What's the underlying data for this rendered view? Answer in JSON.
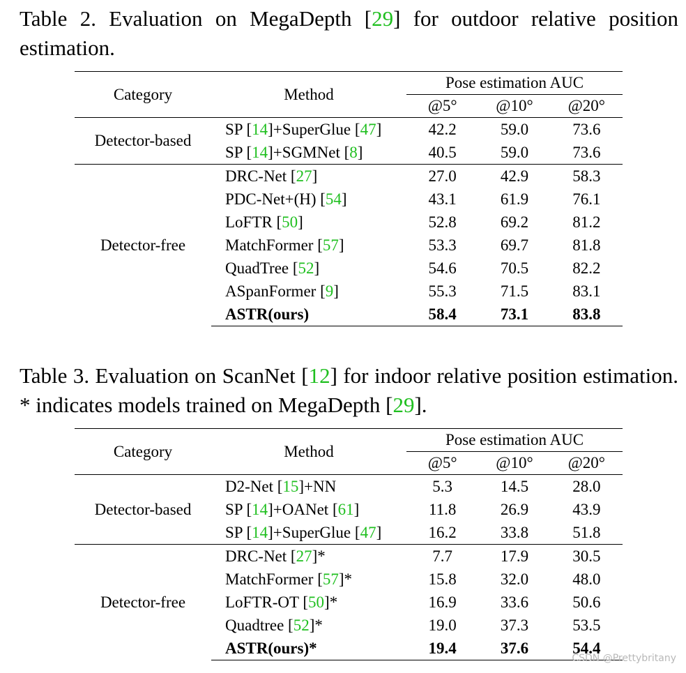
{
  "tables": [
    {
      "caption": [
        "Table 2. Evaluation on MegaDepth [",
        "29",
        "] for outdoor relative position estimation."
      ],
      "header": {
        "category": "Category",
        "method": "Method",
        "group": "Pose estimation AUC",
        "metrics": [
          "@5°",
          "@10°",
          "@20°"
        ]
      },
      "groups": [
        {
          "category": "Detector-based",
          "rows": [
            {
              "method": [
                "SP [",
                "14",
                "]+SuperGlue [",
                "47",
                "]"
              ],
              "values": [
                "42.2",
                "59.0",
                "73.6"
              ]
            },
            {
              "method": [
                "SP [",
                "14",
                "]+SGMNet [",
                "8",
                "]"
              ],
              "values": [
                "40.5",
                "59.0",
                "73.6"
              ]
            }
          ]
        },
        {
          "category": "Detector-free",
          "rows": [
            {
              "method": [
                "DRC-Net [",
                "27",
                "]"
              ],
              "values": [
                "27.0",
                "42.9",
                "58.3"
              ]
            },
            {
              "method": [
                "PDC-Net+(H) [",
                "54",
                "]"
              ],
              "values": [
                "43.1",
                "61.9",
                "76.1"
              ]
            },
            {
              "method": [
                "LoFTR [",
                "50",
                "]"
              ],
              "values": [
                "52.8",
                "69.2",
                "81.2"
              ]
            },
            {
              "method": [
                "MatchFormer [",
                "57",
                "]"
              ],
              "values": [
                "53.3",
                "69.7",
                "81.8"
              ]
            },
            {
              "method": [
                "QuadTree [",
                "52",
                "]"
              ],
              "values": [
                "54.6",
                "70.5",
                "82.2"
              ]
            },
            {
              "method": [
                "ASpanFormer [",
                "9",
                "]"
              ],
              "values": [
                "55.3",
                "71.5",
                "83.1"
              ]
            },
            {
              "method": [
                "ASTR(ours)"
              ],
              "values": [
                "58.4",
                "73.1",
                "83.8"
              ]
            }
          ]
        }
      ]
    },
    {
      "caption": [
        "Table 3. Evaluation on ScanNet [",
        "12",
        "] for indoor relative position estimation. * indicates models trained on MegaDepth [",
        "29",
        "]."
      ],
      "header": {
        "category": "Category",
        "method": "Method",
        "group": "Pose estimation AUC",
        "metrics": [
          "@5°",
          "@10°",
          "@20°"
        ]
      },
      "groups": [
        {
          "category": "Detector-based",
          "rows": [
            {
              "method": [
                "D2-Net [",
                "15",
                "]+NN"
              ],
              "values": [
                "5.3",
                "14.5",
                "28.0"
              ]
            },
            {
              "method": [
                "SP [",
                "14",
                "]+OANet [",
                "61",
                "]"
              ],
              "values": [
                "11.8",
                "26.9",
                "43.9"
              ]
            },
            {
              "method": [
                "SP [",
                "14",
                "]+SuperGlue [",
                "47",
                "]"
              ],
              "values": [
                "16.2",
                "33.8",
                "51.8"
              ]
            }
          ]
        },
        {
          "category": "Detector-free",
          "rows": [
            {
              "method": [
                "DRC-Net [",
                "27",
                "]*"
              ],
              "values": [
                "7.7",
                "17.9",
                "30.5"
              ]
            },
            {
              "method": [
                "MatchFormer [",
                "57",
                "]*"
              ],
              "values": [
                "15.8",
                "32.0",
                "48.0"
              ]
            },
            {
              "method": [
                "LoFTR-OT [",
                "50",
                "]*"
              ],
              "values": [
                "16.9",
                "33.6",
                "50.6"
              ]
            },
            {
              "method": [
                "Quadtree [",
                "52",
                "]*"
              ],
              "values": [
                "19.0",
                "37.3",
                "53.5"
              ]
            },
            {
              "method": [
                "ASTR(ours)*"
              ],
              "values": [
                "19.4",
                "37.6",
                "54.4"
              ]
            }
          ]
        }
      ]
    }
  ],
  "watermark": "CSDN @Prettybritany"
}
